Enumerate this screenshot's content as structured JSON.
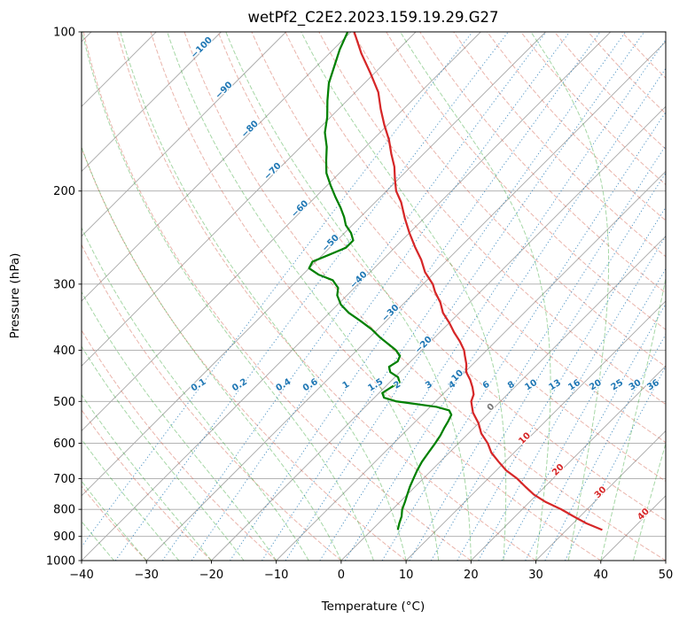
{
  "title": "wetPf2_C2E2.2023.159.19.29.G27",
  "axes": {
    "xlabel": "Temperature (°C)",
    "ylabel": "Pressure (hPa)",
    "x_ticks": [
      -40,
      -30,
      -20,
      -10,
      0,
      10,
      20,
      30,
      40,
      50
    ],
    "pressure_ticks": [
      100,
      200,
      300,
      400,
      500,
      600,
      700,
      800,
      900,
      1000
    ],
    "x_min": -40,
    "x_max": 50,
    "p_top": 100,
    "p_bottom": 1000,
    "skew_degC_per_decade": 81.5
  },
  "style": {
    "grid_color": "#a8a8a8",
    "isotherm_color": "#a8a8a8",
    "dry_adiabat_color": "rgba(208,90,70,0.45)",
    "moist_adiabat_color": "rgba(44,160,44,0.42)",
    "mixing_line_color": "rgba(31,119,180,0.75)",
    "temperature_color": "#d62728",
    "dewpoint_color": "#008000",
    "label_blue": "#1f77b4",
    "label_red": "#d62728",
    "label_gray": "#777777",
    "frame_color": "#000000"
  },
  "chart_data": {
    "type": "line",
    "chart_kind": "skewT-logP-sounding",
    "title": "wetPf2_C2E2.2023.159.19.29.G27",
    "xlabel": "Temperature (°C)",
    "ylabel": "Pressure (hPa)",
    "x_range": [
      -40,
      50
    ],
    "pressure_range_hPa": [
      100,
      1000
    ],
    "grid": true,
    "series": [
      {
        "name": "temperature",
        "units": [
          "hPa",
          "degC"
        ],
        "points": [
          [
            875,
            35.5
          ],
          [
            850,
            32
          ],
          [
            825,
            29
          ],
          [
            800,
            26
          ],
          [
            775,
            22.5
          ],
          [
            750,
            19.5
          ],
          [
            725,
            17
          ],
          [
            700,
            14.5
          ],
          [
            675,
            11.5
          ],
          [
            650,
            9
          ],
          [
            625,
            6.5
          ],
          [
            600,
            4.5
          ],
          [
            575,
            2
          ],
          [
            550,
            0
          ],
          [
            525,
            -2.5
          ],
          [
            500,
            -4.5
          ],
          [
            485,
            -5.2
          ],
          [
            470,
            -6.5
          ],
          [
            455,
            -8
          ],
          [
            440,
            -9.8
          ],
          [
            425,
            -11
          ],
          [
            410,
            -12.5
          ],
          [
            400,
            -13.5
          ],
          [
            385,
            -15.5
          ],
          [
            370,
            -17.8
          ],
          [
            355,
            -20
          ],
          [
            340,
            -22.5
          ],
          [
            325,
            -24.5
          ],
          [
            310,
            -27
          ],
          [
            300,
            -28.5
          ],
          [
            285,
            -31.5
          ],
          [
            270,
            -34
          ],
          [
            255,
            -37
          ],
          [
            240,
            -40
          ],
          [
            225,
            -43
          ],
          [
            210,
            -46
          ],
          [
            200,
            -48.5
          ],
          [
            190,
            -50.5
          ],
          [
            180,
            -52.5
          ],
          [
            170,
            -55
          ],
          [
            160,
            -57.5
          ],
          [
            150,
            -60.5
          ],
          [
            140,
            -63.5
          ],
          [
            130,
            -66.5
          ],
          [
            120,
            -70.5
          ],
          [
            110,
            -75
          ],
          [
            100,
            -79.5
          ]
        ]
      },
      {
        "name": "dewpoint",
        "units": [
          "hPa",
          "degC"
        ],
        "points": [
          [
            875,
            4
          ],
          [
            850,
            3.2
          ],
          [
            825,
            2.5
          ],
          [
            800,
            1.5
          ],
          [
            775,
            0.8
          ],
          [
            750,
            0
          ],
          [
            725,
            -0.8
          ],
          [
            700,
            -1.5
          ],
          [
            675,
            -2.2
          ],
          [
            650,
            -2.8
          ],
          [
            625,
            -3.2
          ],
          [
            600,
            -3.6
          ],
          [
            580,
            -4
          ],
          [
            560,
            -4.6
          ],
          [
            545,
            -5
          ],
          [
            530,
            -5.5
          ],
          [
            520,
            -6.5
          ],
          [
            512,
            -9
          ],
          [
            505,
            -13
          ],
          [
            500,
            -16
          ],
          [
            492,
            -18.5
          ],
          [
            482,
            -19.5
          ],
          [
            470,
            -19
          ],
          [
            460,
            -18.5
          ],
          [
            450,
            -19.5
          ],
          [
            440,
            -21.5
          ],
          [
            430,
            -22.5
          ],
          [
            420,
            -22
          ],
          [
            410,
            -22.5
          ],
          [
            400,
            -24
          ],
          [
            390,
            -26
          ],
          [
            378,
            -28.5
          ],
          [
            365,
            -31
          ],
          [
            352,
            -34
          ],
          [
            340,
            -37
          ],
          [
            328,
            -39.5
          ],
          [
            315,
            -41.5
          ],
          [
            305,
            -42.5
          ],
          [
            295,
            -44.5
          ],
          [
            288,
            -47.5
          ],
          [
            280,
            -50
          ],
          [
            272,
            -50.5
          ],
          [
            264,
            -49
          ],
          [
            256,
            -47.5
          ],
          [
            248,
            -47.5
          ],
          [
            240,
            -49
          ],
          [
            232,
            -51
          ],
          [
            224,
            -52.5
          ],
          [
            215,
            -54.5
          ],
          [
            205,
            -57
          ],
          [
            195,
            -59.5
          ],
          [
            185,
            -62
          ],
          [
            175,
            -64
          ],
          [
            165,
            -66
          ],
          [
            155,
            -68.5
          ],
          [
            145,
            -70.5
          ],
          [
            135,
            -73
          ],
          [
            125,
            -75.5
          ],
          [
            115,
            -77.5
          ],
          [
            108,
            -79
          ],
          [
            100,
            -80.5
          ]
        ]
      }
    ],
    "isotherms": {
      "min": -160,
      "max": 50,
      "step": 10
    },
    "isotherm_labels": [
      {
        "t": -100,
        "p": 108
      },
      {
        "t": -90,
        "p": 130
      },
      {
        "t": -80,
        "p": 154
      },
      {
        "t": -70,
        "p": 185
      },
      {
        "t": -60,
        "p": 218
      },
      {
        "t": -50,
        "p": 253
      },
      {
        "t": -40,
        "p": 297
      },
      {
        "t": -30,
        "p": 343
      },
      {
        "t": -20,
        "p": 394
      },
      {
        "t": -10,
        "p": 456
      },
      {
        "t": 0,
        "p": 517
      },
      {
        "t": 10,
        "p": 592
      },
      {
        "t": 20,
        "p": 679
      },
      {
        "t": 30,
        "p": 749
      },
      {
        "t": 40,
        "p": 824
      }
    ],
    "dry_adiabats_theta_C": {
      "min": -40,
      "max": 180,
      "step": 10
    },
    "moist_adiabats_t0_C": {
      "min": -40,
      "max": 50,
      "step": 5
    },
    "mixing_ratio_g_per_kg": [
      0.1,
      0.2,
      0.4,
      0.6,
      1,
      1.5,
      2,
      3,
      4,
      6,
      8,
      10,
      13,
      16,
      20,
      25,
      30,
      36
    ],
    "mixing_label_pressure_hPa": 470
  }
}
